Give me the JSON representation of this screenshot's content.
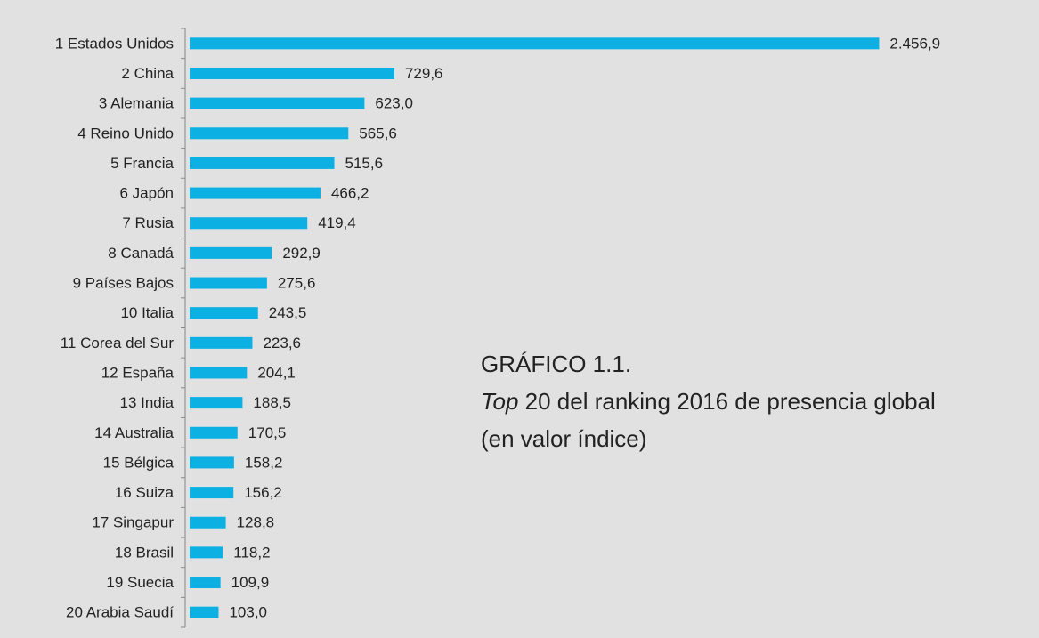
{
  "chart_data": {
    "type": "barh",
    "title": "GRÁFICO 1.1.",
    "subtitle": {
      "italic": "Top",
      "text": " 20 del ranking 2016 de presencia global"
    },
    "note": "(en valor índice)",
    "categories": [
      "1 Estados Unidos",
      "2 China",
      "3 Alemania",
      "4 Reino Unido",
      "5 Francia",
      "6 Japón",
      "7 Rusia",
      "8 Canadá",
      "9 Países Bajos",
      "10 Italia",
      "11 Corea del Sur",
      "12 España",
      "13 India",
      "14 Australia",
      "15 Bélgica",
      "16 Suiza",
      "17 Singapur",
      "18 Brasil",
      "19 Suecia",
      "20 Arabia Saudí"
    ],
    "values": [
      2456.9,
      729.6,
      623.0,
      565.6,
      515.6,
      466.2,
      419.4,
      292.9,
      275.6,
      243.5,
      223.6,
      204.1,
      188.5,
      170.5,
      158.2,
      156.2,
      128.8,
      118.2,
      109.9,
      103.0
    ],
    "value_labels": [
      "2.456,9",
      "729,6",
      "623,0",
      "565,6",
      "515,6",
      "466,2",
      "419,4",
      "292,9",
      "275,6",
      "243,5",
      "223,6",
      "204,1",
      "188,5",
      "170,5",
      "158,2",
      "156,2",
      "128,8",
      "118,2",
      "109,9",
      "103,0"
    ],
    "color": "#0cb0e2",
    "xlim": [
      0,
      2500
    ]
  }
}
